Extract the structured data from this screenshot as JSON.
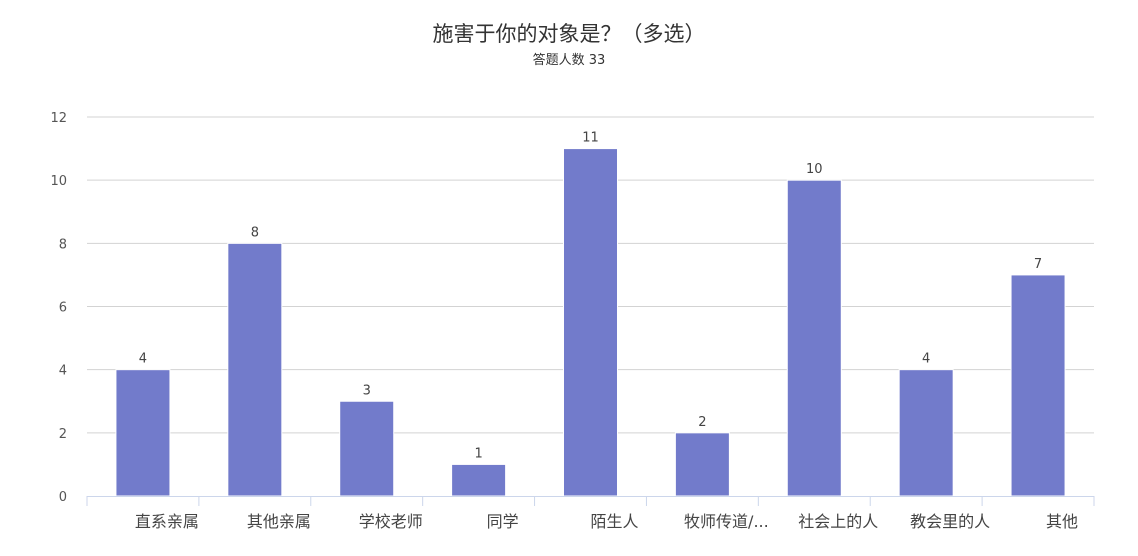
{
  "chart_data": {
    "type": "bar",
    "title": "施害于你的对象是？（多选）",
    "subtitle": "答题人数 33",
    "categories": [
      "直系亲属",
      "其他亲属",
      "学校老师",
      "同学",
      "陌生人",
      "牧师传道/...",
      "社会上的人",
      "教会里的人",
      "其他"
    ],
    "values": [
      4,
      8,
      3,
      1,
      11,
      2,
      10,
      4,
      7
    ],
    "ylim": [
      0,
      12
    ],
    "yticks": [
      0,
      2,
      4,
      6,
      8,
      10,
      12
    ],
    "grid": true,
    "legend": "none",
    "colors": {
      "bar": "#727bcb",
      "grid": "#d3d3d3",
      "axis": "#ccd6eb"
    }
  }
}
